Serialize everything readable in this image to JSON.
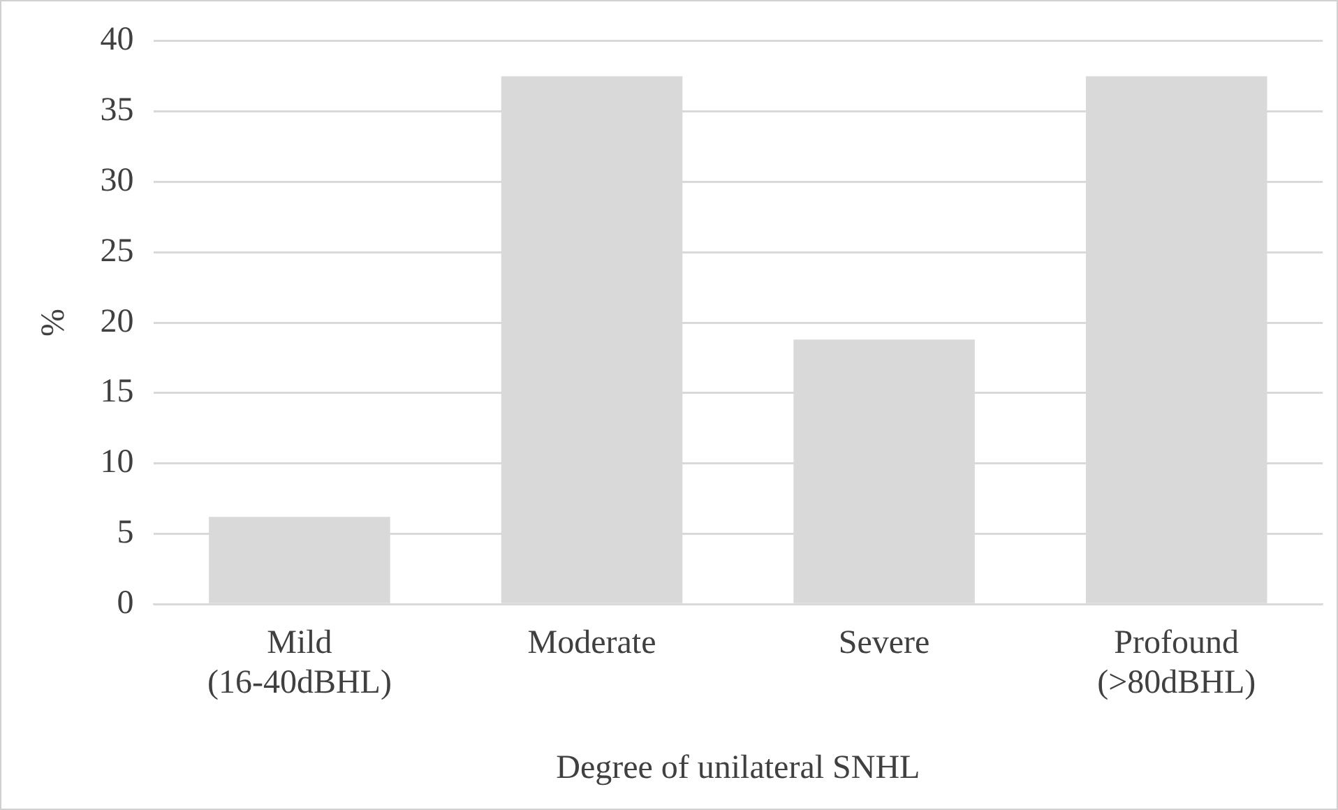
{
  "chart_data": {
    "type": "bar",
    "xlabel": "Degree of unilateral SNHL",
    "ylabel": "%",
    "categories": [
      "Mild (16-40dBHL)",
      "Moderate",
      "Severe",
      "Profound (>80dBHL)"
    ],
    "values": [
      6.2,
      37.5,
      18.8,
      37.5
    ],
    "color": "#d9d9d9",
    "ylim": [
      0,
      40
    ],
    "yticks": [
      0,
      5,
      10,
      15,
      20,
      25,
      30,
      35,
      40
    ],
    "grid": "y",
    "legend": false
  }
}
